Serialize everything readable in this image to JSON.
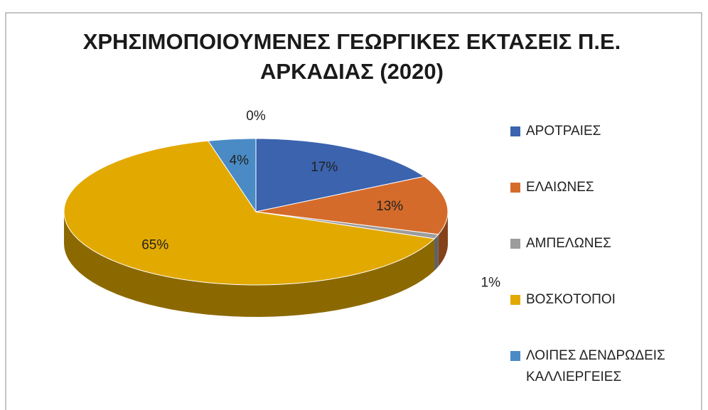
{
  "chart_data": {
    "type": "pie",
    "title": "ΧΡΗΣΙΜΟΠΟΙΟΥΜΕΝΕΣ ΓΕΩΡΓΙΚΕΣ ΕΚΤΑΣΕΙΣ Π.Ε. ΑΡΚΑΔΙΑΣ (2020)",
    "categories": [
      "ΑΡΟΤΡΑΙΕΣ",
      "ΕΛΑΙΩΝΕΣ",
      "ΑΜΠΕΛΩΝΕΣ",
      "ΒΟΣΚΟΤΟΠΟΙ",
      "ΛΟΙΠΕΣ ΔΕΝΔΡΩΔΕΙΣ ΚΑΛΛΙΕΡΓΕΙΕΣ",
      null
    ],
    "values": [
      17,
      13,
      1,
      65,
      4,
      0
    ],
    "value_labels": [
      "17%",
      "13%",
      "1%",
      "65%",
      "4%",
      "0%"
    ],
    "colors": [
      "#3b63ae",
      "#d56b2b",
      "#9c9c9c",
      "#e2a900",
      "#4a8bc5",
      "#6f3f8f"
    ],
    "legend": "right"
  }
}
